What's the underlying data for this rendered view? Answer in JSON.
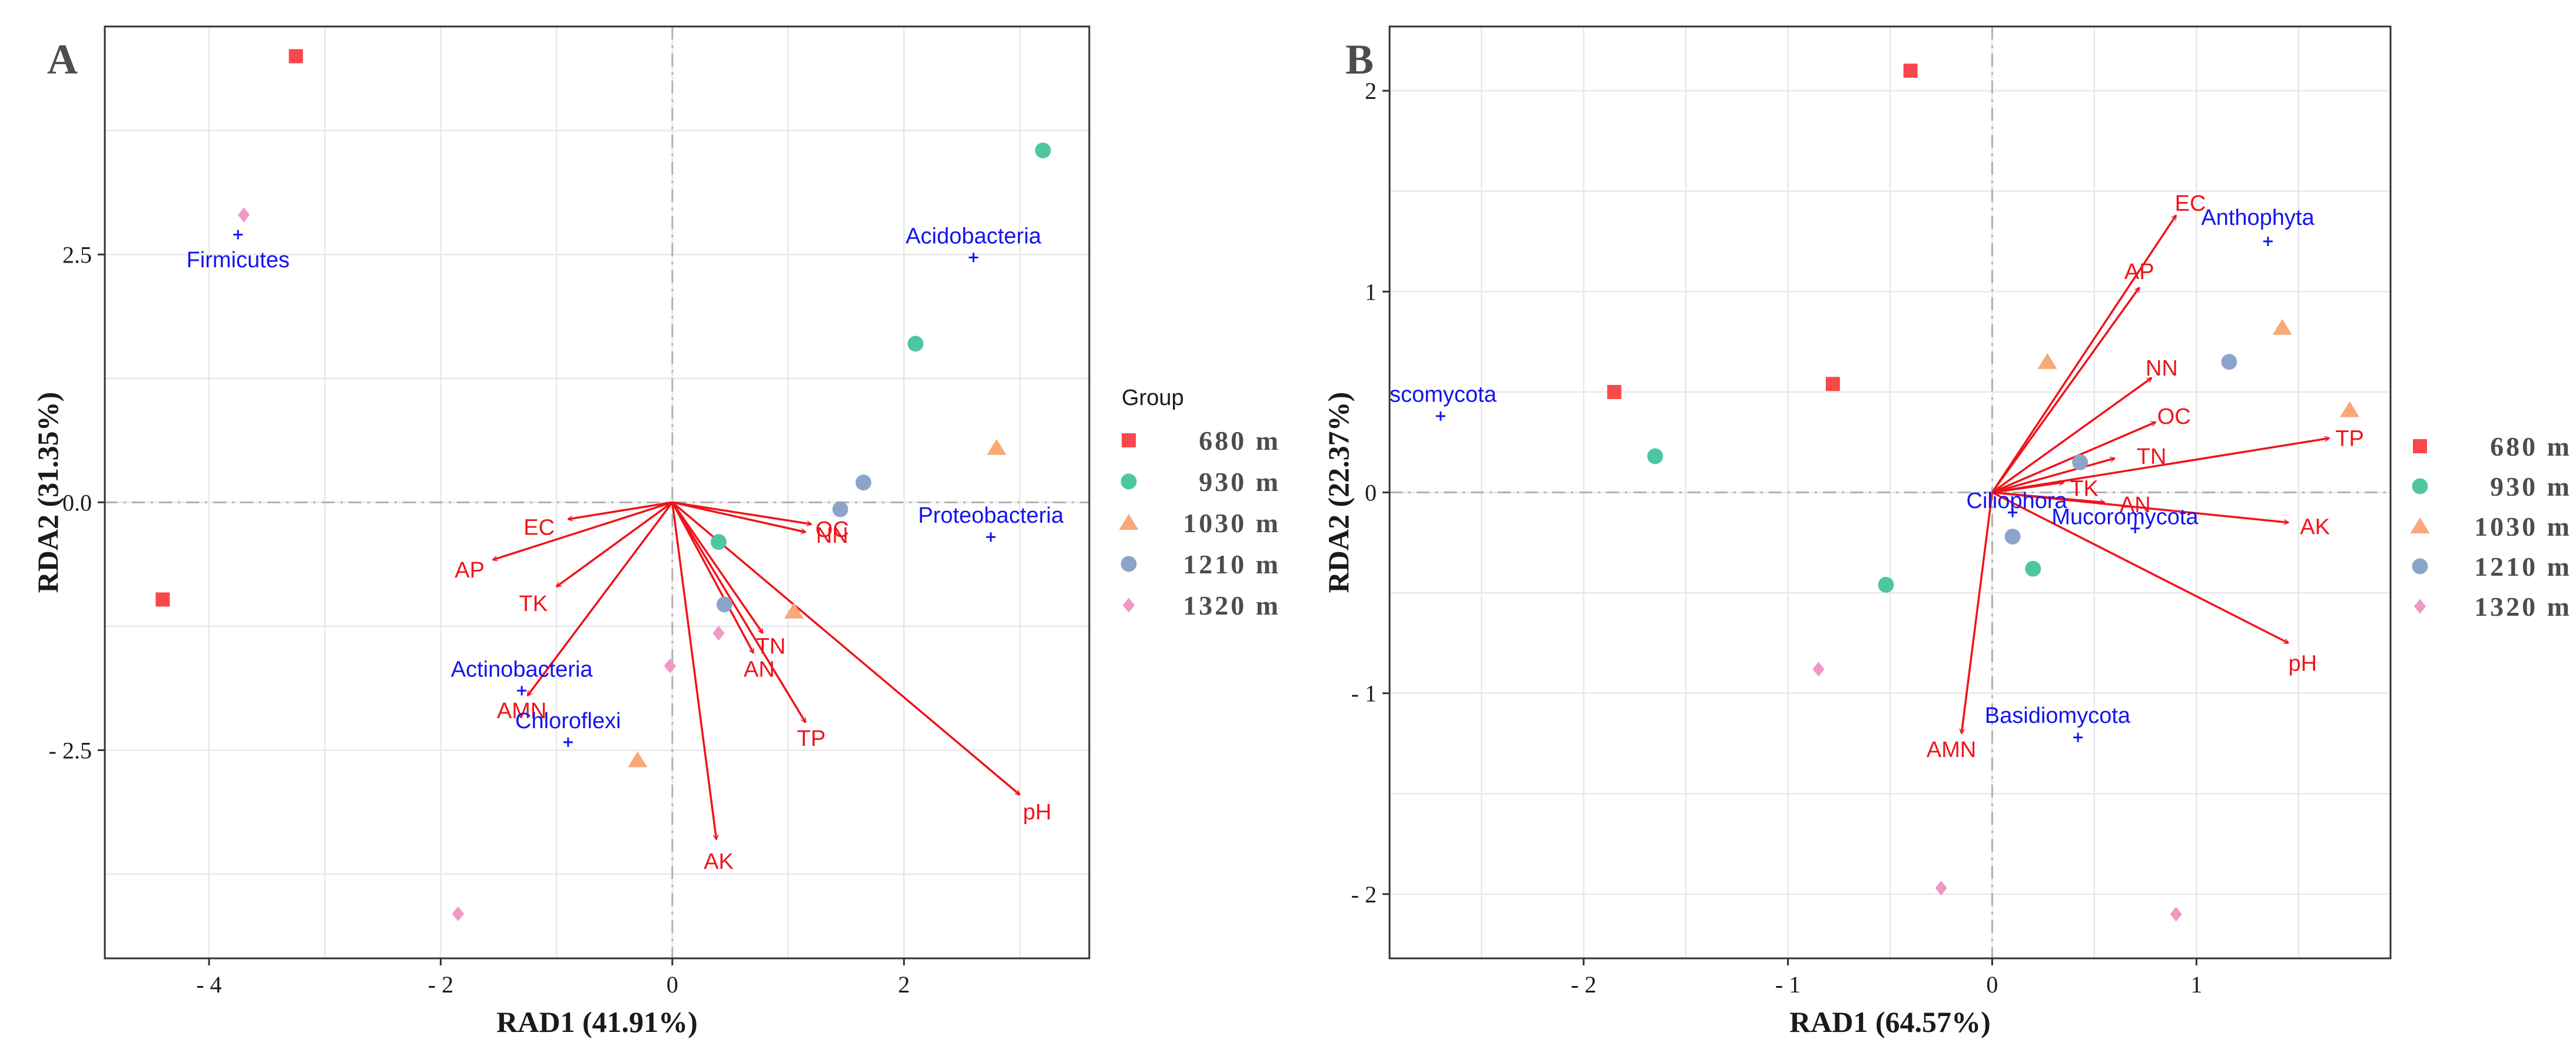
{
  "chart_data": [
    {
      "type": "scatter",
      "panel_label": "A",
      "xlabel": "RAD1 (41.91%)",
      "ylabel": "RDA2 (31.35%)",
      "xlim": [
        -4.9,
        3.6
      ],
      "ylim": [
        -4.6,
        4.8
      ],
      "xticks": [
        -4,
        -2,
        0,
        2
      ],
      "yticks": [
        -2.5,
        0.0,
        2.5
      ],
      "xtick_labels": [
        "- 4",
        "- 2",
        "0",
        "2"
      ],
      "ytick_labels": [
        "- 2.5",
        "0.0",
        "2.5"
      ],
      "grid": true,
      "samples": [
        {
          "group": "680 m",
          "x": -3.25,
          "y": 4.5
        },
        {
          "group": "680 m",
          "x": -4.4,
          "y": -0.98
        },
        {
          "group": "930 m",
          "x": 3.2,
          "y": 3.55
        },
        {
          "group": "930 m",
          "x": 2.1,
          "y": 1.6
        },
        {
          "group": "930 m",
          "x": 0.4,
          "y": -0.4
        },
        {
          "group": "1030 m",
          "x": 2.8,
          "y": 0.55
        },
        {
          "group": "1030 m",
          "x": 1.05,
          "y": -1.1
        },
        {
          "group": "1030 m",
          "x": -0.3,
          "y": -2.6
        },
        {
          "group": "1210 m",
          "x": 1.65,
          "y": 0.2
        },
        {
          "group": "1210 m",
          "x": 1.45,
          "y": -0.07
        },
        {
          "group": "1210 m",
          "x": 0.45,
          "y": -1.03
        },
        {
          "group": "1320 m",
          "x": -3.7,
          "y": 2.9
        },
        {
          "group": "1320 m",
          "x": -0.02,
          "y": -1.65
        },
        {
          "group": "1320 m",
          "x": 0.4,
          "y": -1.32
        },
        {
          "group": "1320 m",
          "x": -1.85,
          "y": -4.15
        }
      ],
      "taxa": [
        {
          "name": "Firmicutes",
          "x": -3.75,
          "y": 2.7,
          "label_anchor": "middle",
          "dx": 0,
          "dy": -0.25
        },
        {
          "name": "Acidobacteria",
          "x": 2.6,
          "y": 2.47,
          "label_anchor": "middle",
          "dx": 0,
          "dy": 0.22
        },
        {
          "name": "Proteobacteria",
          "x": 2.75,
          "y": -0.35,
          "label_anchor": "middle",
          "dx": 0,
          "dy": 0.22
        },
        {
          "name": "Actinobacteria",
          "x": -1.3,
          "y": -1.9,
          "label_anchor": "middle",
          "dx": 0,
          "dy": 0.22
        },
        {
          "name": "Chloroflexi",
          "x": -0.9,
          "y": -2.42,
          "label_anchor": "middle",
          "dx": 0,
          "dy": 0.22
        }
      ],
      "env_vectors": [
        {
          "name": "EC",
          "x": -0.9,
          "y": -0.17,
          "lx": -1.15,
          "ly": -0.25
        },
        {
          "name": "AP",
          "x": -1.55,
          "y": -0.58,
          "lx": -1.75,
          "ly": -0.68
        },
        {
          "name": "TK",
          "x": -1.0,
          "y": -0.85,
          "lx": -1.2,
          "ly": -1.02
        },
        {
          "name": "AMN",
          "x": -1.25,
          "y": -1.95,
          "lx": -1.3,
          "ly": -2.1
        },
        {
          "name": "AK",
          "x": 0.38,
          "y": -3.4,
          "lx": 0.4,
          "ly": -3.62
        },
        {
          "name": "AN",
          "x": 0.7,
          "y": -1.52,
          "lx": 0.75,
          "ly": -1.68
        },
        {
          "name": "TN",
          "x": 0.78,
          "y": -1.32,
          "lx": 0.85,
          "ly": -1.45
        },
        {
          "name": "TP",
          "x": 1.15,
          "y": -2.22,
          "lx": 1.2,
          "ly": -2.38
        },
        {
          "name": "pH",
          "x": 3.0,
          "y": -2.95,
          "lx": 3.15,
          "ly": -3.12
        },
        {
          "name": "OC",
          "x": 1.2,
          "y": -0.22,
          "lx": 1.38,
          "ly": -0.27
        },
        {
          "name": "NN",
          "x": 1.15,
          "y": -0.3,
          "lx": 1.38,
          "ly": -0.33
        }
      ]
    },
    {
      "type": "scatter",
      "panel_label": "B",
      "xlabel": "RAD1 (64.57%)",
      "ylabel": "RDA2 (22.37%)",
      "xlim": [
        -2.95,
        1.95
      ],
      "ylim": [
        -2.32,
        2.32
      ],
      "xticks": [
        -2,
        -1,
        0,
        1
      ],
      "yticks": [
        -2,
        -1,
        0,
        1,
        2
      ],
      "xtick_labels": [
        "- 2",
        "- 1",
        "0",
        "1"
      ],
      "ytick_labels": [
        "- 2",
        "- 1",
        "0",
        "1",
        "2"
      ],
      "grid": true,
      "samples": [
        {
          "group": "680 m",
          "x": -0.4,
          "y": 2.1
        },
        {
          "group": "680 m",
          "x": -1.85,
          "y": 0.5
        },
        {
          "group": "680 m",
          "x": -0.78,
          "y": 0.54
        },
        {
          "group": "930 m",
          "x": -1.65,
          "y": 0.18
        },
        {
          "group": "930 m",
          "x": -0.52,
          "y": -0.46
        },
        {
          "group": "930 m",
          "x": 0.2,
          "y": -0.38
        },
        {
          "group": "1030 m",
          "x": 0.27,
          "y": 0.65
        },
        {
          "group": "1030 m",
          "x": 1.42,
          "y": 0.82
        },
        {
          "group": "1030 m",
          "x": 1.75,
          "y": 0.41
        },
        {
          "group": "1210 m",
          "x": 1.16,
          "y": 0.65
        },
        {
          "group": "1210 m",
          "x": 0.43,
          "y": 0.15
        },
        {
          "group": "1210 m",
          "x": 0.1,
          "y": -0.22
        },
        {
          "group": "1320 m",
          "x": -0.85,
          "y": -0.88
        },
        {
          "group": "1320 m",
          "x": -0.25,
          "y": -1.97
        },
        {
          "group": "1320 m",
          "x": 0.9,
          "y": -2.1
        }
      ],
      "taxa": [
        {
          "name": "Anthophyta",
          "x": 1.35,
          "y": 1.25,
          "label_anchor": "middle",
          "dx": -0.05,
          "dy": 0.12
        },
        {
          "name": "scomycota",
          "x": -2.7,
          "y": 0.38,
          "label_anchor": "start",
          "dx": -0.25,
          "dy": 0.11
        },
        {
          "name": "Ciliophora",
          "x": 0.1,
          "y": -0.1,
          "label_anchor": "middle",
          "dx": 0.02,
          "dy": 0.06
        },
        {
          "name": "Mucoromycota",
          "x": 0.7,
          "y": -0.18,
          "label_anchor": "middle",
          "dx": -0.05,
          "dy": 0.06
        },
        {
          "name": "Basidiomycota",
          "x": 0.42,
          "y": -1.22,
          "label_anchor": "middle",
          "dx": -0.1,
          "dy": 0.11
        }
      ],
      "env_vectors": [
        {
          "name": "EC",
          "x": 0.9,
          "y": 1.38,
          "lx": 0.97,
          "ly": 1.44
        },
        {
          "name": "AP",
          "x": 0.72,
          "y": 1.02,
          "lx": 0.72,
          "ly": 1.1
        },
        {
          "name": "NN",
          "x": 0.78,
          "y": 0.57,
          "lx": 0.83,
          "ly": 0.62
        },
        {
          "name": "OC",
          "x": 0.8,
          "y": 0.35,
          "lx": 0.89,
          "ly": 0.38
        },
        {
          "name": "TN",
          "x": 0.6,
          "y": 0.17,
          "lx": 0.78,
          "ly": 0.18
        },
        {
          "name": "TK",
          "x": 0.35,
          "y": 0.05,
          "lx": 0.45,
          "ly": 0.02
        },
        {
          "name": "AN",
          "x": 0.55,
          "y": -0.05,
          "lx": 0.7,
          "ly": -0.06
        },
        {
          "name": "TP",
          "x": 1.65,
          "y": 0.27,
          "lx": 1.75,
          "ly": 0.27
        },
        {
          "name": "AK",
          "x": 1.45,
          "y": -0.15,
          "lx": 1.58,
          "ly": -0.17
        },
        {
          "name": "pH",
          "x": 1.45,
          "y": -0.75,
          "lx": 1.52,
          "ly": -0.85
        },
        {
          "name": "AMN",
          "x": -0.15,
          "y": -1.2,
          "lx": -0.2,
          "ly": -1.28
        }
      ]
    }
  ],
  "legend": {
    "title": "Group",
    "items": [
      {
        "label": "680 m",
        "shape": "square",
        "color": "#f8484c"
      },
      {
        "label": "930 m",
        "shape": "circle",
        "color": "#4ec6a2"
      },
      {
        "label": "1030 m",
        "shape": "triangle",
        "color": "#f9a877"
      },
      {
        "label": "1210 m",
        "shape": "circle",
        "color": "#8da4ca"
      },
      {
        "label": "1320 m",
        "shape": "diamond",
        "color": "#f098c6"
      }
    ]
  },
  "colors": {
    "vector": "#f0141a",
    "taxon": "#1414f0",
    "grid": "#e8e8e8",
    "zero_line": "#b0b0b0",
    "frame": "#333333"
  }
}
